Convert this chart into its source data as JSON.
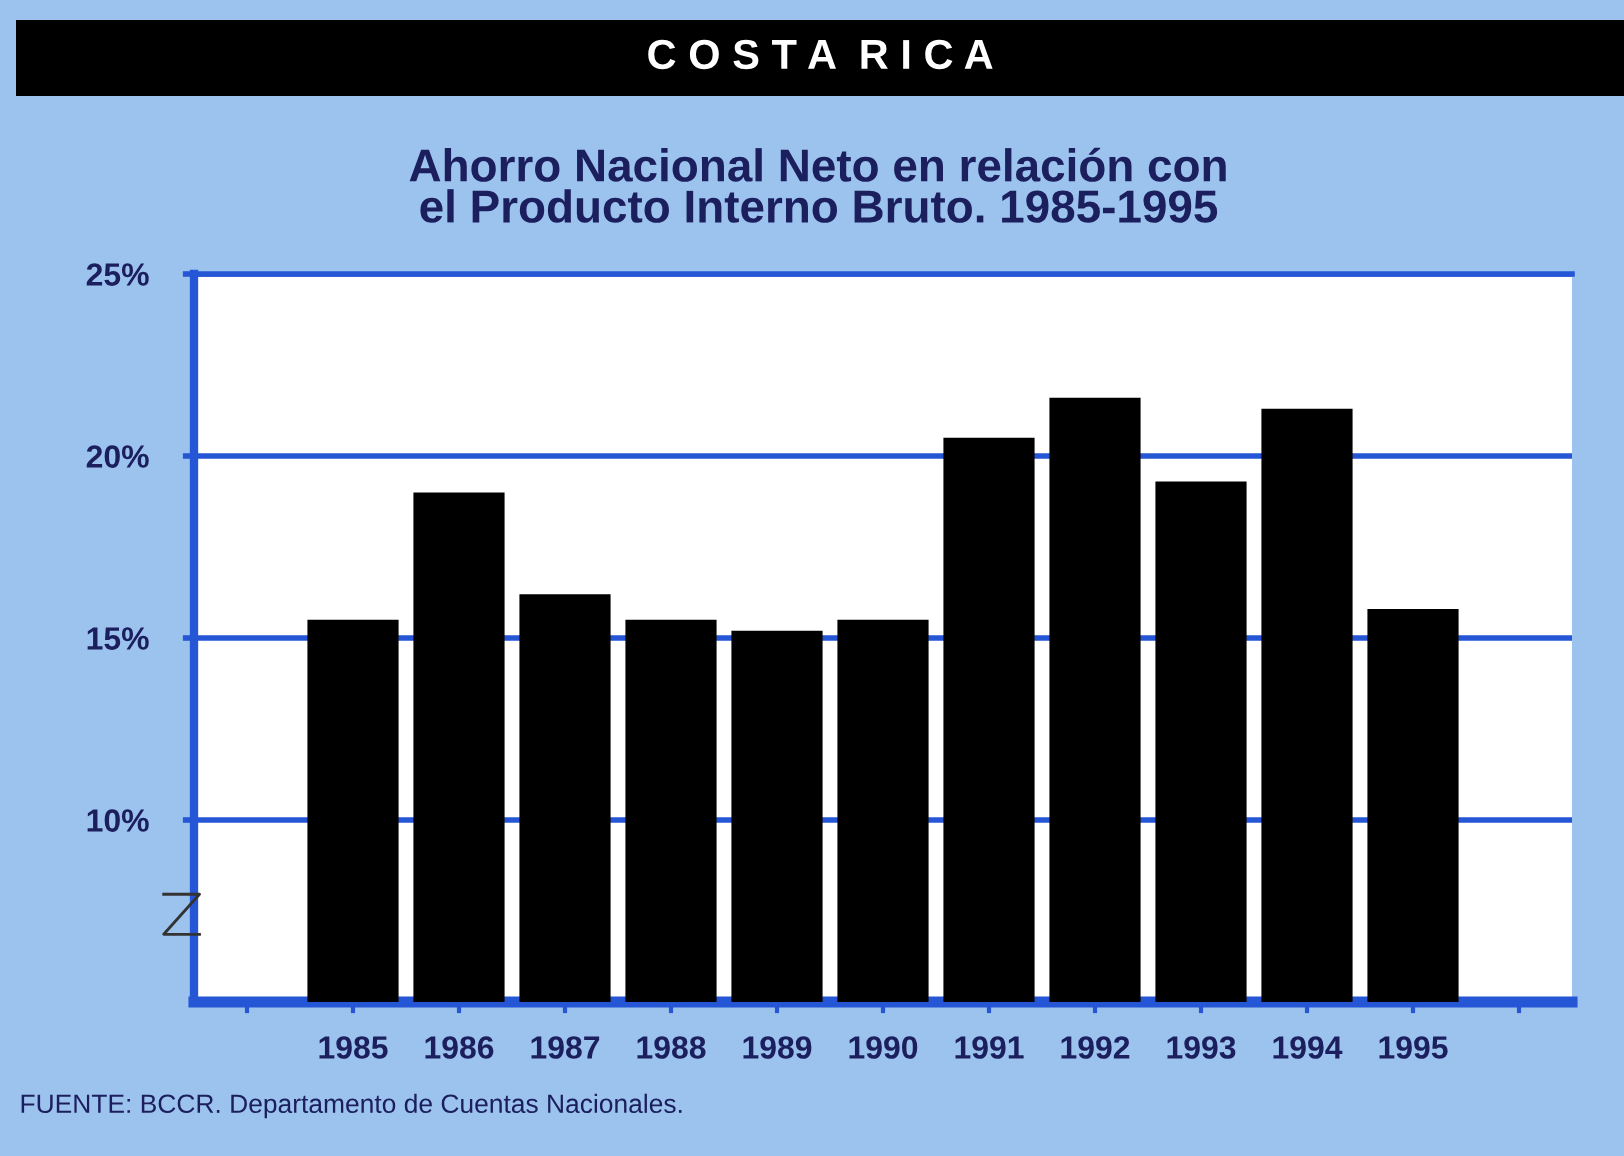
{
  "chart_data": {
    "type": "bar",
    "title": "C O S T A  R I C A",
    "subtitle": "Ahorro Nacional Neto en relación con\nel Producto Interno Bruto. 1985-1995",
    "categories": [
      "1985",
      "1986",
      "1987",
      "1988",
      "1989",
      "1990",
      "1991",
      "1992",
      "1993",
      "1994",
      "1995"
    ],
    "values": [
      15.5,
      19.0,
      16.2,
      15.5,
      15.2,
      15.5,
      20.5,
      21.6,
      19.3,
      21.3,
      15.8
    ],
    "color": "#000000",
    "ylim": [
      5,
      25
    ],
    "yticks": [
      {
        "value": 10,
        "label": "10%"
      },
      {
        "value": 15,
        "label": "15%"
      },
      {
        "value": 20,
        "label": "20%"
      },
      {
        "value": 25,
        "label": "25%"
      }
    ],
    "grid": "y",
    "annotations": [
      "FUENTE: BCCR. Departamento de Cuentas Nacionales."
    ]
  }
}
